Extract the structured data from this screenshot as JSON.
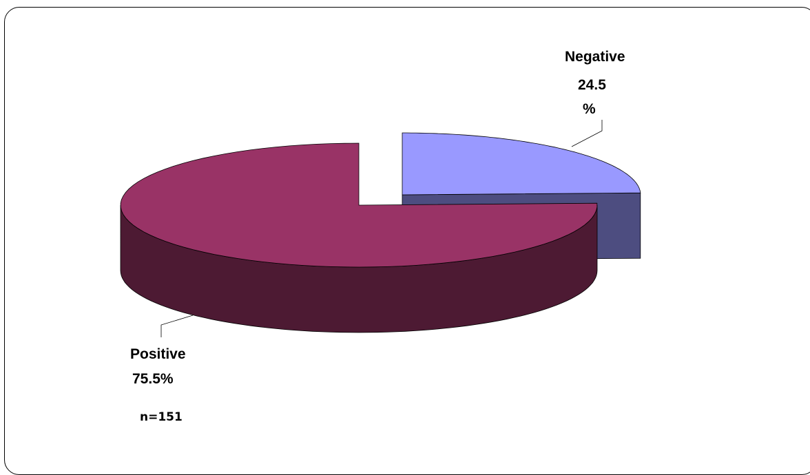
{
  "chart_data": {
    "type": "pie",
    "style": "3d-exploded",
    "slices": [
      {
        "label": "Positive",
        "value": 75.5,
        "value_label": "75.5%",
        "color": "#993366",
        "side_color": "#4d1a33"
      },
      {
        "label": "Negative",
        "value": 24.5,
        "value_label": "24.5 %",
        "color": "#9999ff",
        "side_color": "#4d4d80"
      }
    ],
    "note": "n=151",
    "legend": "none"
  }
}
